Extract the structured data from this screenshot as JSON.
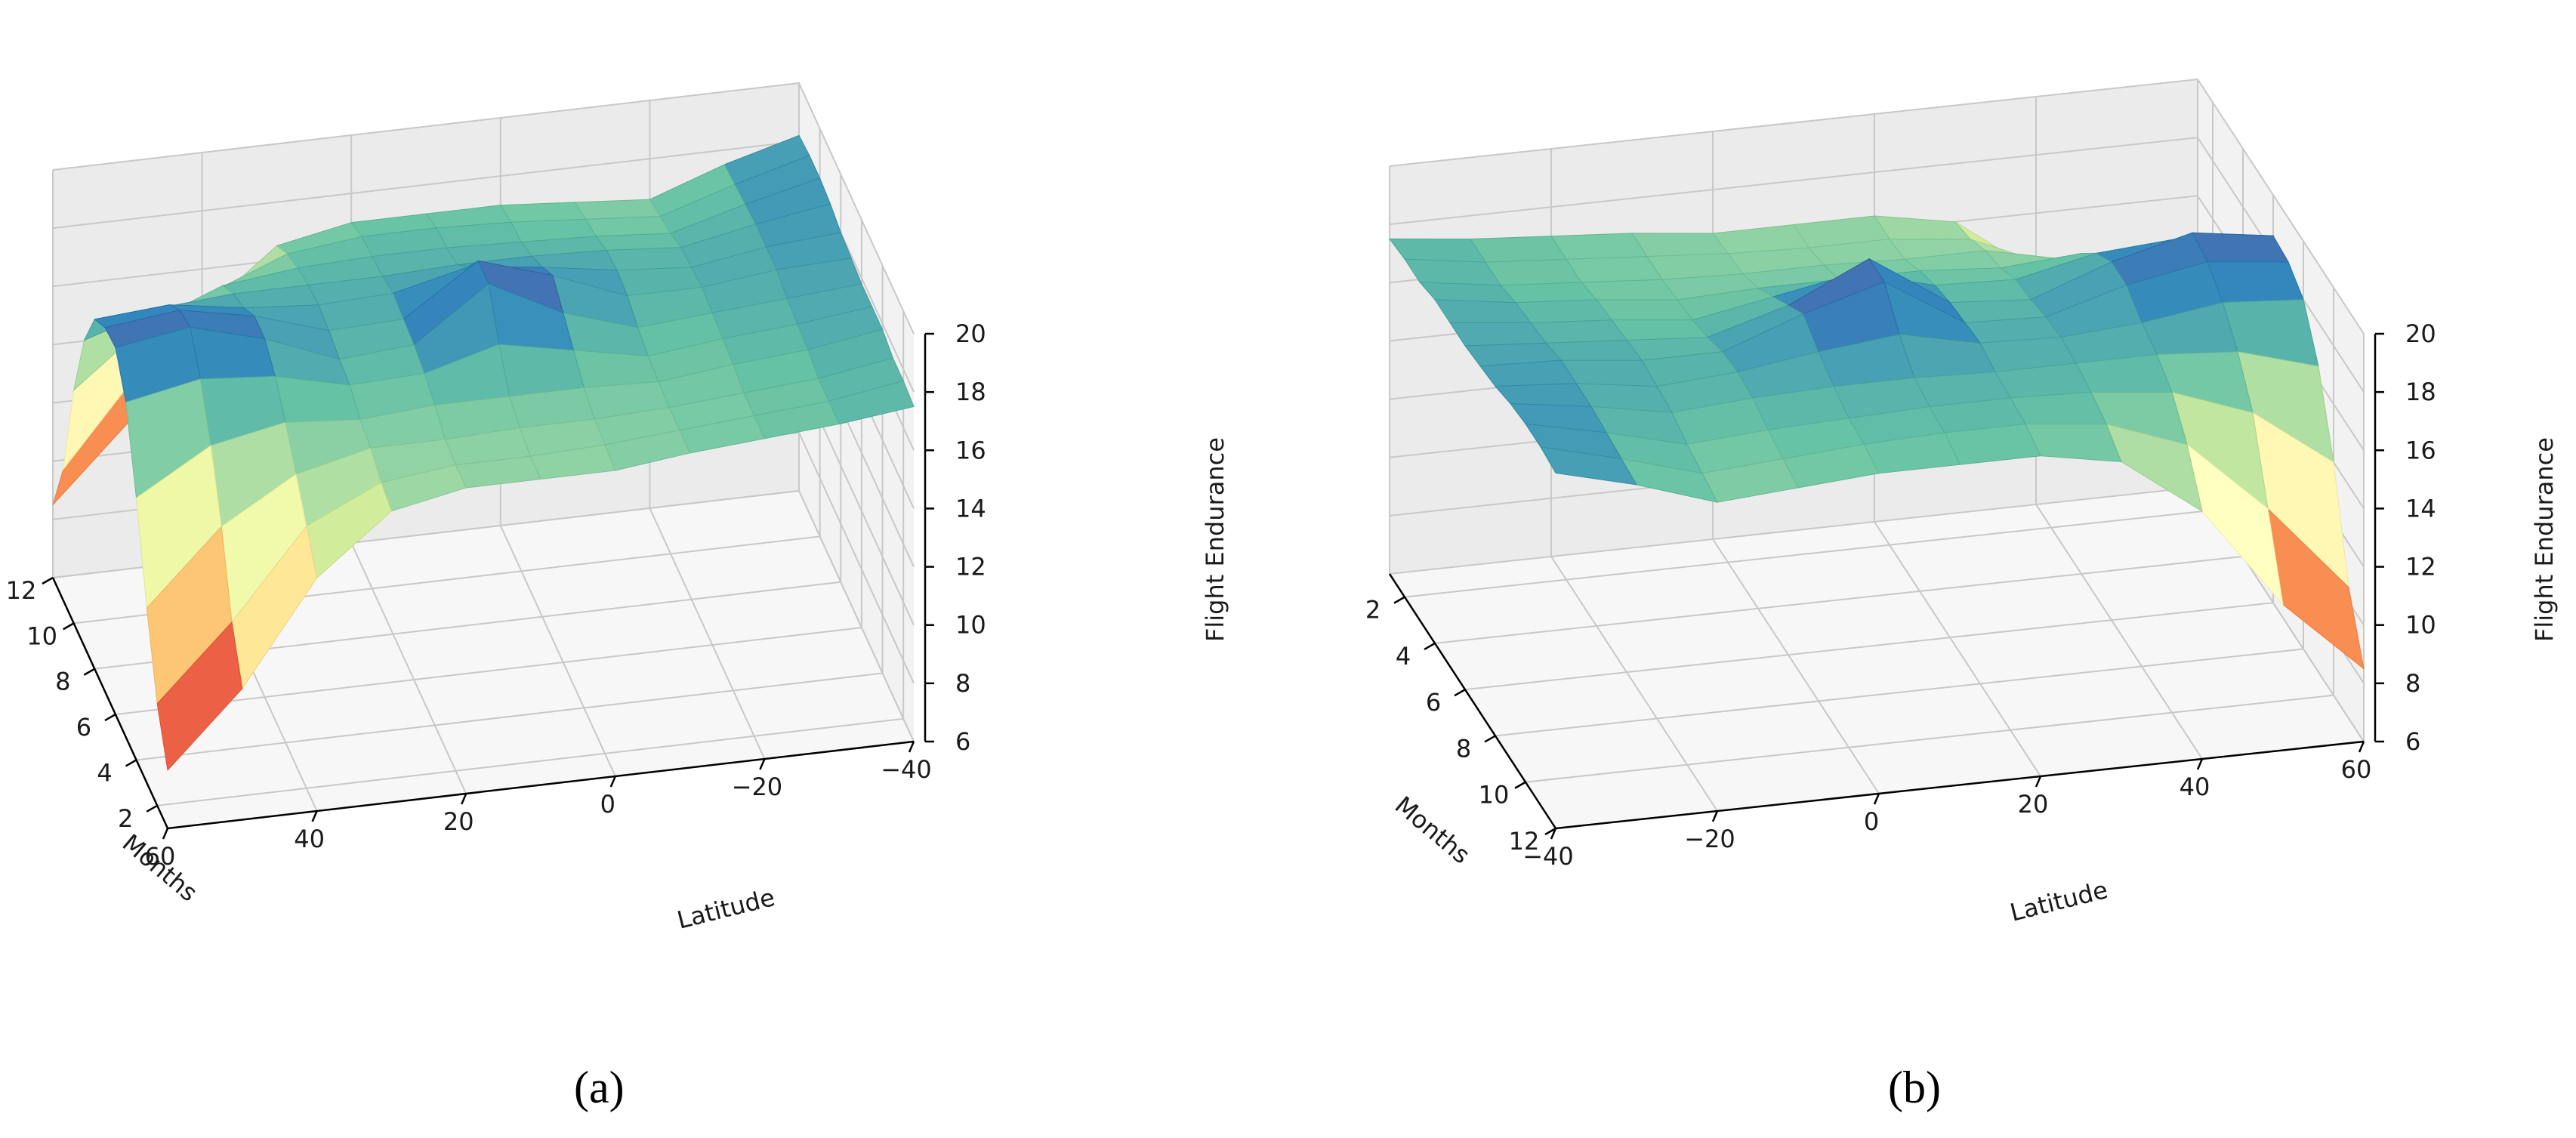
{
  "colors": {
    "pane_left": "#ebebeb",
    "pane_right": "#f2f2f2",
    "pane_floor": "#f7f7f7",
    "grid": "#c8c8c8",
    "colormap": "Spectral"
  },
  "chart_data": [
    {
      "type": "surface",
      "panel": "(a)",
      "xlabel": "Months",
      "ylabel": "Latitude",
      "zlabel": "Flight Endurance",
      "months_ticks": [
        "12",
        "10",
        "8",
        "6",
        "4",
        "2"
      ],
      "latitude_ticks": [
        "60",
        "40",
        "20",
        "0",
        "−20",
        "−40"
      ],
      "z_ticks": [
        "20",
        "18",
        "16",
        "14",
        "12",
        "10",
        "8",
        "6"
      ],
      "zlim": [
        6,
        20
      ],
      "months": [
        1,
        2,
        3,
        4,
        5,
        6,
        7,
        8,
        9,
        10,
        11,
        12
      ],
      "latitudes": [
        60,
        50,
        40,
        30,
        20,
        10,
        0,
        -10,
        -20,
        -30,
        -40
      ],
      "endurance": [
        [
          8.0,
          10.5,
          14.0,
          16.0,
          16.5,
          16.5,
          16.5,
          16.8,
          17.0,
          17.2,
          17.5
        ],
        [
          9.5,
          12.0,
          15.0,
          16.2,
          16.5,
          16.5,
          16.6,
          16.8,
          17.0,
          17.2,
          17.6
        ],
        [
          12.0,
          14.5,
          16.0,
          16.6,
          16.6,
          16.7,
          16.7,
          16.8,
          17.0,
          17.2,
          17.6
        ],
        [
          15.0,
          16.5,
          17.0,
          16.8,
          17.0,
          17.0,
          17.0,
          16.9,
          17.2,
          17.4,
          17.8
        ],
        [
          17.5,
          18.0,
          17.8,
          17.2,
          17.3,
          18.0,
          17.5,
          17.0,
          17.3,
          17.5,
          17.8
        ],
        [
          18.6,
          19.0,
          18.3,
          17.3,
          17.5,
          19.3,
          18.0,
          17.2,
          17.4,
          17.6,
          17.8
        ],
        [
          18.5,
          18.8,
          18.3,
          17.5,
          17.6,
          19.3,
          18.5,
          17.5,
          17.5,
          17.8,
          17.9
        ],
        [
          18.0,
          18.2,
          17.8,
          17.6,
          17.7,
          18.3,
          18.0,
          17.6,
          17.4,
          17.8,
          18.0
        ],
        [
          16.5,
          17.3,
          17.5,
          17.5,
          17.5,
          17.6,
          17.6,
          17.5,
          17.3,
          17.8,
          18.2
        ],
        [
          14.0,
          16.0,
          17.0,
          17.3,
          17.4,
          17.4,
          17.3,
          17.2,
          17.0,
          17.7,
          18.3
        ],
        [
          10.5,
          13.5,
          16.0,
          17.0,
          17.3,
          17.3,
          17.2,
          17.0,
          16.8,
          17.6,
          18.3
        ],
        [
          8.5,
          11.0,
          14.5,
          16.5,
          17.0,
          17.0,
          17.0,
          16.8,
          16.6,
          17.5,
          18.2
        ]
      ]
    },
    {
      "type": "surface",
      "panel": "(b)",
      "xlabel": "Months",
      "ylabel": "Latitude",
      "zlabel": "Flight Endurance",
      "months_ticks": [
        "2",
        "4",
        "6",
        "8",
        "10",
        "12"
      ],
      "latitude_ticks": [
        "−40",
        "−20",
        "0",
        "20",
        "40",
        "60"
      ],
      "z_ticks": [
        "20",
        "18",
        "16",
        "14",
        "12",
        "10",
        "8",
        "6"
      ],
      "zlim": [
        6,
        20
      ],
      "months": [
        1,
        2,
        3,
        4,
        5,
        6,
        7,
        8,
        9,
        10,
        11,
        12
      ],
      "latitudes": [
        60,
        50,
        40,
        30,
        20,
        10,
        0,
        -10,
        -20,
        -30,
        -40
      ],
      "endurance": [
        [
          8.0,
          10.5,
          14.0,
          16.0,
          16.5,
          16.5,
          16.5,
          16.8,
          17.0,
          17.2,
          17.5
        ],
        [
          9.5,
          12.0,
          15.0,
          16.2,
          16.5,
          16.5,
          16.6,
          16.8,
          17.0,
          17.2,
          17.6
        ],
        [
          12.0,
          14.5,
          16.0,
          16.6,
          16.6,
          16.7,
          16.7,
          16.8,
          17.0,
          17.2,
          17.6
        ],
        [
          15.0,
          16.5,
          17.0,
          16.8,
          17.0,
          17.0,
          17.0,
          16.9,
          17.2,
          17.4,
          17.8
        ],
        [
          17.5,
          18.0,
          17.8,
          17.2,
          17.3,
          18.0,
          17.5,
          17.0,
          17.3,
          17.5,
          17.8
        ],
        [
          18.6,
          19.0,
          18.3,
          17.3,
          17.5,
          19.3,
          18.0,
          17.2,
          17.4,
          17.6,
          17.8
        ],
        [
          18.5,
          18.8,
          18.3,
          17.5,
          17.6,
          19.3,
          18.5,
          17.5,
          17.5,
          17.8,
          17.9
        ],
        [
          18.0,
          18.2,
          17.8,
          17.6,
          17.7,
          18.3,
          18.0,
          17.6,
          17.4,
          17.8,
          18.0
        ],
        [
          16.5,
          17.3,
          17.5,
          17.5,
          17.5,
          17.6,
          17.6,
          17.5,
          17.3,
          17.8,
          18.2
        ],
        [
          14.0,
          16.0,
          17.0,
          17.3,
          17.4,
          17.4,
          17.3,
          17.2,
          17.0,
          17.7,
          18.3
        ],
        [
          10.5,
          13.5,
          16.0,
          17.0,
          17.3,
          17.3,
          17.2,
          17.0,
          16.8,
          17.6,
          18.3
        ],
        [
          8.5,
          11.0,
          14.5,
          16.5,
          17.0,
          17.0,
          17.0,
          16.8,
          16.6,
          17.5,
          18.2
        ]
      ]
    }
  ]
}
